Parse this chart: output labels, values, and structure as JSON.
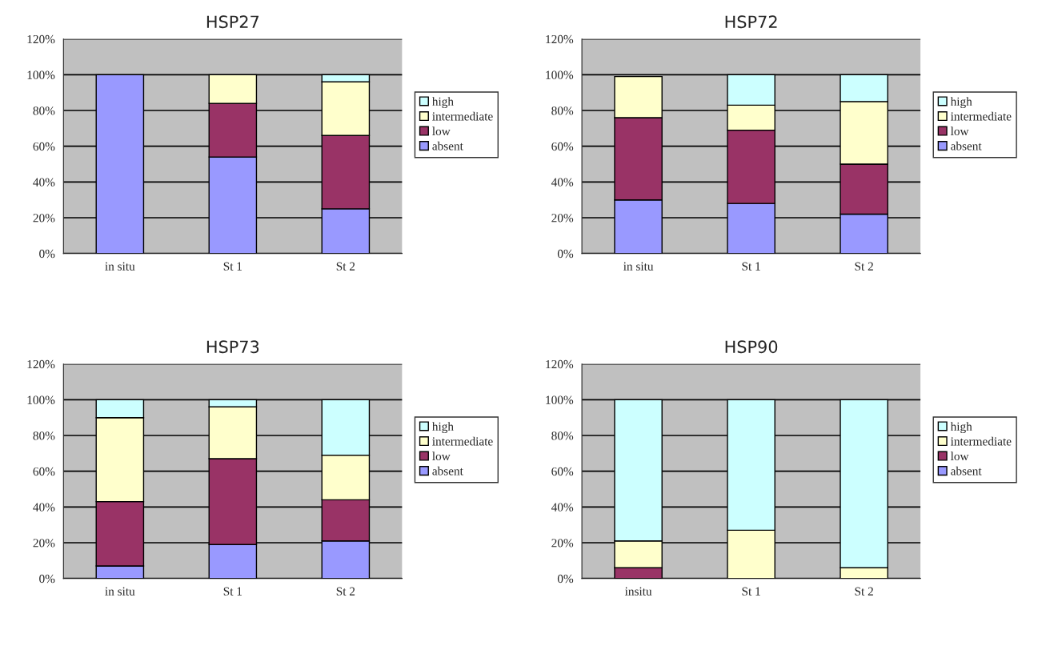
{
  "chart_data": [
    {
      "type": "bar",
      "title": "HSP27",
      "stacked": true,
      "categories": [
        "in situ",
        "St 1",
        "St 2"
      ],
      "ylim": [
        0,
        120
      ],
      "yticks": [
        {
          "value": 0,
          "label": "0%"
        },
        {
          "value": 20,
          "label": "20%"
        },
        {
          "value": 40,
          "label": "40%"
        },
        {
          "value": 60,
          "label": "60%"
        },
        {
          "value": 80,
          "label": "80%"
        },
        {
          "value": 100,
          "label": "100%"
        },
        {
          "value": 120,
          "label": "120%"
        }
      ],
      "grid": "y",
      "legend": "right",
      "series": [
        {
          "name": "absent",
          "color": "#9999ff",
          "values": [
            100,
            54,
            25
          ]
        },
        {
          "name": "low",
          "color": "#993366",
          "values": [
            null,
            30,
            41
          ]
        },
        {
          "name": "intermediate",
          "color": "#ffffcc",
          "values": [
            null,
            16,
            30
          ]
        },
        {
          "name": "high",
          "color": "#ccffff",
          "values": [
            null,
            null,
            4
          ]
        }
      ]
    },
    {
      "type": "bar",
      "title": "HSP72",
      "stacked": true,
      "categories": [
        "in situ",
        "St 1",
        "St 2"
      ],
      "ylim": [
        0,
        120
      ],
      "yticks": [
        {
          "value": 0,
          "label": "0%"
        },
        {
          "value": 20,
          "label": "20%"
        },
        {
          "value": 40,
          "label": "40%"
        },
        {
          "value": 60,
          "label": "60%"
        },
        {
          "value": 80,
          "label": "80%"
        },
        {
          "value": 100,
          "label": "100%"
        },
        {
          "value": 120,
          "label": "120%"
        }
      ],
      "grid": "y",
      "legend": "right",
      "series": [
        {
          "name": "absent",
          "color": "#9999ff",
          "values": [
            30,
            28,
            22
          ]
        },
        {
          "name": "low",
          "color": "#993366",
          "values": [
            46,
            41,
            28
          ]
        },
        {
          "name": "intermediate",
          "color": "#ffffcc",
          "values": [
            23,
            14,
            35
          ]
        },
        {
          "name": "high",
          "color": "#ccffff",
          "values": [
            null,
            17,
            15
          ]
        }
      ]
    },
    {
      "type": "bar",
      "title": "HSP73",
      "stacked": true,
      "categories": [
        "in situ",
        "St 1",
        "St 2"
      ],
      "ylim": [
        0,
        120
      ],
      "yticks": [
        {
          "value": 0,
          "label": "0%"
        },
        {
          "value": 20,
          "label": "20%"
        },
        {
          "value": 40,
          "label": "40%"
        },
        {
          "value": 60,
          "label": "60%"
        },
        {
          "value": 80,
          "label": "80%"
        },
        {
          "value": 100,
          "label": "100%"
        },
        {
          "value": 120,
          "label": "120%"
        }
      ],
      "grid": "y",
      "legend": "right",
      "series": [
        {
          "name": "absent",
          "color": "#9999ff",
          "values": [
            7,
            19,
            21
          ]
        },
        {
          "name": "low",
          "color": "#993366",
          "values": [
            36,
            48,
            23
          ]
        },
        {
          "name": "intermediate",
          "color": "#ffffcc",
          "values": [
            47,
            29,
            25
          ]
        },
        {
          "name": "high",
          "color": "#ccffff",
          "values": [
            10,
            4,
            31
          ]
        }
      ]
    },
    {
      "type": "bar",
      "title": "HSP90",
      "stacked": true,
      "categories": [
        "insitu",
        "St 1",
        "St 2"
      ],
      "ylim": [
        0,
        120
      ],
      "yticks": [
        {
          "value": 0,
          "label": "0%"
        },
        {
          "value": 20,
          "label": "20%"
        },
        {
          "value": 40,
          "label": "40%"
        },
        {
          "value": 60,
          "label": "60%"
        },
        {
          "value": 80,
          "label": "80%"
        },
        {
          "value": 100,
          "label": "100%"
        },
        {
          "value": 120,
          "label": "120%"
        }
      ],
      "grid": "y",
      "legend": "right",
      "series": [
        {
          "name": "absent",
          "color": "#9999ff",
          "values": [
            null,
            null,
            null
          ]
        },
        {
          "name": "low",
          "color": "#993366",
          "values": [
            6,
            null,
            null
          ]
        },
        {
          "name": "intermediate",
          "color": "#ffffcc",
          "values": [
            15,
            27,
            6
          ]
        },
        {
          "name": "high",
          "color": "#ccffff",
          "values": [
            79,
            73,
            94
          ]
        }
      ]
    }
  ]
}
